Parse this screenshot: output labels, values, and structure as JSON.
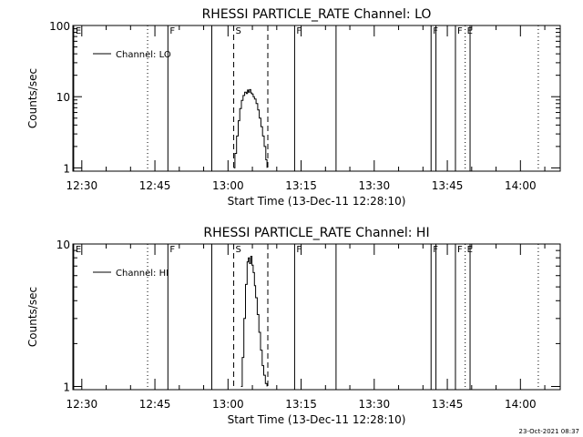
{
  "colors": {
    "background": "#ffffff",
    "foreground": "#000000"
  },
  "footer": {
    "timestamp": "23-Oct-2021 08:37"
  },
  "chart_data": [
    {
      "type": "line",
      "title": "RHESSI PARTICLE_RATE Channel: LO",
      "xlabel": "Start Time (13-Dec-11 12:28:10)",
      "ylabel": "Counts/sec",
      "y_scale": "log",
      "xlim": [
        "12:28:10",
        "14:08:10"
      ],
      "ylim": [
        0.9,
        100
      ],
      "x_ticks": [
        "12:30",
        "12:45",
        "13:00",
        "13:15",
        "13:30",
        "13:45",
        "14:00"
      ],
      "y_ticks": [
        "1",
        "10",
        "100"
      ],
      "legend": {
        "placement": "top-left",
        "entries": [
          "Channel: LO"
        ]
      },
      "markers": [
        {
          "time": "12:28:20",
          "style": "solid",
          "label": "E"
        },
        {
          "time": "12:43:30",
          "style": "dotted",
          "label": ""
        },
        {
          "time": "12:47:40",
          "style": "solid",
          "label": "F"
        },
        {
          "time": "12:56:40",
          "style": "solid",
          "label": ""
        },
        {
          "time": "13:01:10",
          "style": "dashed",
          "label": "S"
        },
        {
          "time": "13:08:10",
          "style": "dashed",
          "label": ""
        },
        {
          "time": "13:13:40",
          "style": "solid",
          "label": "F"
        },
        {
          "time": "13:22:10",
          "style": "solid",
          "label": ""
        },
        {
          "time": "13:41:40",
          "style": "solid",
          "label": "F"
        },
        {
          "time": "13:42:40",
          "style": "solid",
          "label": ""
        },
        {
          "time": "13:46:40",
          "style": "solid",
          "label": "F"
        },
        {
          "time": "13:48:40",
          "style": "dotted",
          "label": "E"
        },
        {
          "time": "13:49:40",
          "style": "solid",
          "label": ""
        },
        {
          "time": "14:03:40",
          "style": "dotted",
          "label": ""
        }
      ],
      "series": [
        {
          "name": "Channel: LO",
          "x": [
            "13:01:10",
            "13:01:25",
            "13:01:45",
            "13:02:05",
            "13:02:25",
            "13:02:45",
            "13:03:05",
            "13:03:25",
            "13:03:45",
            "13:04:00",
            "13:04:10",
            "13:04:25",
            "13:04:40",
            "13:04:55",
            "13:05:10",
            "13:05:25",
            "13:05:45",
            "13:06:05",
            "13:06:25",
            "13:06:45",
            "13:07:05",
            "13:07:25",
            "13:07:45",
            "13:08:00"
          ],
          "values": [
            1.0,
            1.6,
            2.8,
            4.6,
            6.8,
            8.9,
            10.4,
            11.6,
            11.1,
            12.4,
            11.6,
            12.6,
            11.3,
            10.9,
            10.0,
            9.3,
            8.0,
            6.5,
            5.0,
            3.8,
            2.8,
            2.0,
            1.3,
            1.0
          ]
        }
      ]
    },
    {
      "type": "line",
      "title": "RHESSI PARTICLE_RATE Channel: HI",
      "xlabel": "Start Time (13-Dec-11 12:28:10)",
      "ylabel": "Counts/sec",
      "y_scale": "log",
      "xlim": [
        "12:28:10",
        "14:08:10"
      ],
      "ylim": [
        0.95,
        10
      ],
      "x_ticks": [
        "12:30",
        "12:45",
        "13:00",
        "13:15",
        "13:30",
        "13:45",
        "14:00"
      ],
      "y_ticks": [
        "1",
        "10"
      ],
      "legend": {
        "placement": "top-left",
        "entries": [
          "Channel: HI"
        ]
      },
      "markers": [
        {
          "time": "12:28:20",
          "style": "solid",
          "label": "E"
        },
        {
          "time": "12:43:30",
          "style": "dotted",
          "label": ""
        },
        {
          "time": "12:47:40",
          "style": "solid",
          "label": "F"
        },
        {
          "time": "12:56:40",
          "style": "solid",
          "label": ""
        },
        {
          "time": "13:01:10",
          "style": "dashed",
          "label": "S"
        },
        {
          "time": "13:08:10",
          "style": "dashed",
          "label": ""
        },
        {
          "time": "13:13:40",
          "style": "solid",
          "label": "F"
        },
        {
          "time": "13:22:10",
          "style": "solid",
          "label": ""
        },
        {
          "time": "13:41:40",
          "style": "solid",
          "label": "F"
        },
        {
          "time": "13:42:40",
          "style": "solid",
          "label": ""
        },
        {
          "time": "13:46:40",
          "style": "solid",
          "label": "F"
        },
        {
          "time": "13:48:40",
          "style": "dotted",
          "label": "E"
        },
        {
          "time": "13:49:40",
          "style": "solid",
          "label": ""
        },
        {
          "time": "14:03:40",
          "style": "dotted",
          "label": ""
        }
      ],
      "series": [
        {
          "name": "Channel: HI",
          "x": [
            "13:02:40",
            "13:02:55",
            "13:03:15",
            "13:03:35",
            "13:03:55",
            "13:04:10",
            "13:04:25",
            "13:04:40",
            "13:04:55",
            "13:05:10",
            "13:05:25",
            "13:05:40",
            "13:06:00",
            "13:06:20",
            "13:06:40",
            "13:07:00",
            "13:07:20",
            "13:07:40",
            "13:08:00"
          ],
          "values": [
            1.0,
            1.6,
            3.0,
            5.2,
            7.5,
            8.0,
            7.3,
            8.2,
            7.1,
            6.3,
            5.1,
            4.2,
            3.2,
            2.4,
            1.8,
            1.4,
            1.2,
            1.05,
            1.0
          ]
        }
      ]
    }
  ]
}
